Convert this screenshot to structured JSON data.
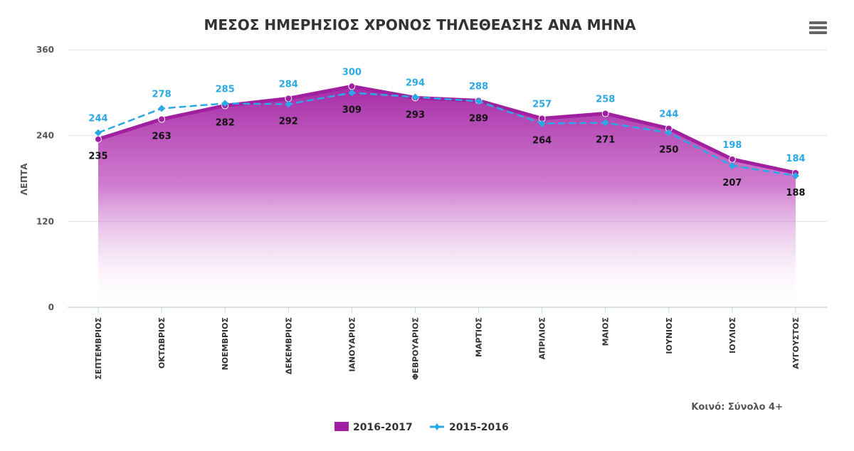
{
  "chart_data": {
    "type": "area",
    "title": "ΜΕΣΟΣ ΗΜΕΡΗΣΙΟΣ ΧΡΟΝΟΣ ΤΗΛΕΘΕΑΣΗΣ ΑΝΑ ΜΗΝΑ",
    "ylabel": "ΛΕΠΤΑ",
    "xlabel": "",
    "ylim": [
      0,
      360
    ],
    "yticks": [
      0,
      120,
      240,
      360
    ],
    "categories": [
      "ΣΕΠΤΕΜΒΡΙΟΣ",
      "ΟΚΤΩΒΡΙΟΣ",
      "ΝΟΕΜΒΡΙΟΣ",
      "ΔΕΚΕΜΒΡΙΟΣ",
      "ΙΑΝΟΥΑΡΙΟΣ",
      "ΦΕΒΡΟΥΑΡΙΟΣ",
      "ΜΑΡΤΙΟΣ",
      "ΑΠΡΙΛΙΟΣ",
      "ΜΑΙΟΣ",
      "ΙΟΥΝΙΟΣ",
      "ΙΟΥΛΙΟΣ",
      "ΑΥΓΟΥΣΤΟΣ"
    ],
    "series": [
      {
        "name": "2016-2017",
        "type": "area",
        "color": "#a020a0",
        "values": [
          235,
          263,
          282,
          292,
          309,
          293,
          289,
          264,
          271,
          250,
          207,
          188
        ]
      },
      {
        "name": "2015-2016",
        "type": "line",
        "color": "#2ba9e6",
        "values": [
          244,
          278,
          285,
          284,
          300,
          294,
          288,
          257,
          258,
          244,
          198,
          184
        ]
      }
    ],
    "grid": true,
    "legend": "bottom-center",
    "note": "Κοινό: Σύνολο 4+"
  }
}
